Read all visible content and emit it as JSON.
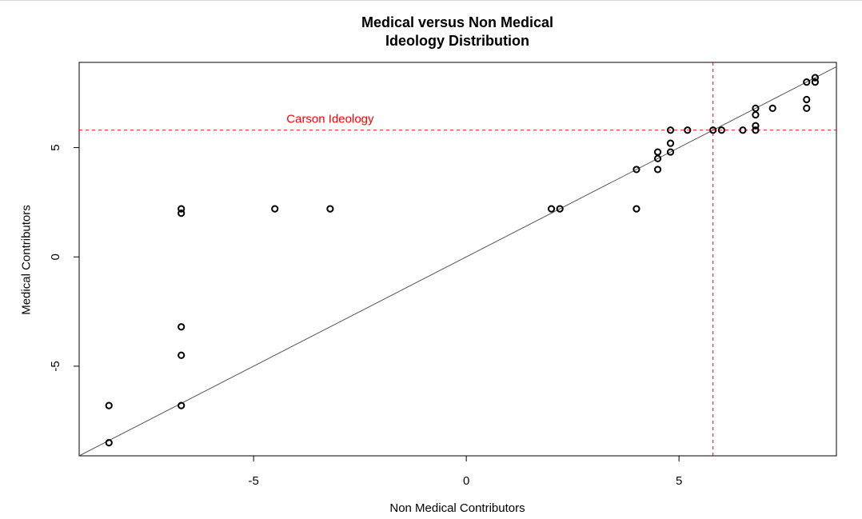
{
  "chart_data": {
    "type": "scatter",
    "title_lines": [
      "Medical versus Non Medical",
      "Ideology Distribution"
    ],
    "xlabel": "Non Medical Contributors",
    "ylabel": "Medical Contributors",
    "xlim": [
      -9.1,
      8.7
    ],
    "ylim": [
      -9.1,
      8.9
    ],
    "x_ticks": [
      -5,
      0,
      5
    ],
    "y_ticks": [
      -5,
      0,
      5
    ],
    "grid": false,
    "reference_line": {
      "type": "y=x",
      "color": "#555555"
    },
    "carson": {
      "x": 5.8,
      "y": 5.8,
      "label": "Carson Ideology",
      "color": "#ff0000",
      "line_style": "dashed"
    },
    "points": [
      {
        "x": -8.4,
        "y": -8.5
      },
      {
        "x": -8.4,
        "y": -6.8
      },
      {
        "x": -6.7,
        "y": -6.8
      },
      {
        "x": -6.7,
        "y": -4.5
      },
      {
        "x": -6.7,
        "y": -3.2
      },
      {
        "x": -6.7,
        "y": 2.0
      },
      {
        "x": -6.7,
        "y": 2.2
      },
      {
        "x": -4.5,
        "y": 2.2
      },
      {
        "x": -3.2,
        "y": 2.2
      },
      {
        "x": 2.0,
        "y": 2.2
      },
      {
        "x": 2.2,
        "y": 2.2
      },
      {
        "x": 4.0,
        "y": 2.2
      },
      {
        "x": 4.0,
        "y": 4.0
      },
      {
        "x": 4.5,
        "y": 4.0
      },
      {
        "x": 4.5,
        "y": 4.5
      },
      {
        "x": 4.5,
        "y": 4.8
      },
      {
        "x": 4.8,
        "y": 4.8
      },
      {
        "x": 4.8,
        "y": 5.2
      },
      {
        "x": 4.8,
        "y": 5.8
      },
      {
        "x": 5.2,
        "y": 5.8
      },
      {
        "x": 5.8,
        "y": 5.8
      },
      {
        "x": 6.0,
        "y": 5.8
      },
      {
        "x": 6.5,
        "y": 5.8
      },
      {
        "x": 6.8,
        "y": 5.8
      },
      {
        "x": 6.8,
        "y": 6.0
      },
      {
        "x": 6.8,
        "y": 6.5
      },
      {
        "x": 6.8,
        "y": 6.8
      },
      {
        "x": 7.2,
        "y": 6.8
      },
      {
        "x": 8.0,
        "y": 6.8
      },
      {
        "x": 8.0,
        "y": 7.2
      },
      {
        "x": 8.0,
        "y": 8.0
      },
      {
        "x": 8.2,
        "y": 8.0
      },
      {
        "x": 8.2,
        "y": 8.2
      }
    ]
  }
}
